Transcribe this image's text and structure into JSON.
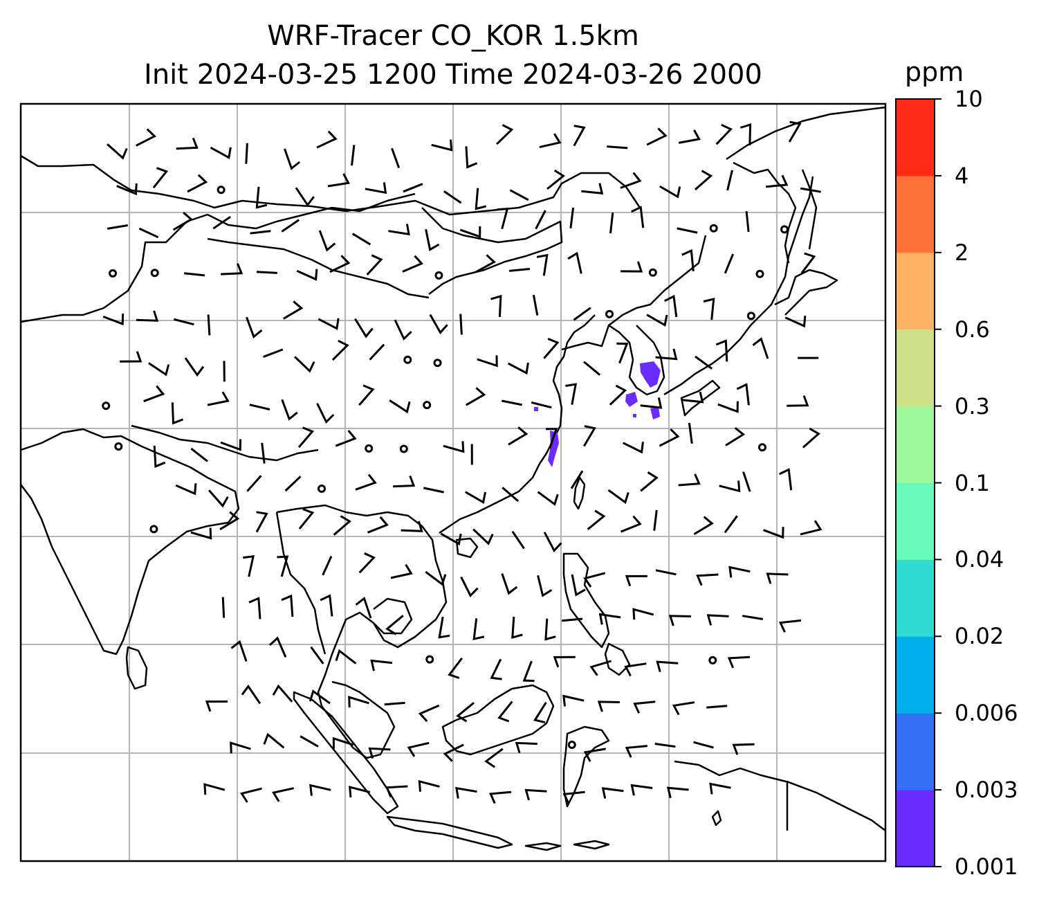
{
  "title_line1": "WRF-Tracer CO_KOR 1.5km",
  "title_line2": "Init 2024-03-25 1200 Time 2024-03-26 2000",
  "colorbar": {
    "unit": "ppm",
    "tick_labels": [
      "0.001",
      "0.003",
      "0.006",
      "0.02",
      "0.04",
      "0.1",
      "0.3",
      "0.6",
      "2",
      "4",
      "10"
    ],
    "colors": [
      "#6a2bff",
      "#3470f5",
      "#00b0ea",
      "#2fdcd2",
      "#68fcbc",
      "#9cfa9c",
      "#cfe18a",
      "#fdb265",
      "#fe7239",
      "#fe2a16"
    ]
  },
  "style": {
    "coast_color": "#000000",
    "grid_color": "#b4b4b4",
    "tracer_color": "#6a2bff"
  }
}
